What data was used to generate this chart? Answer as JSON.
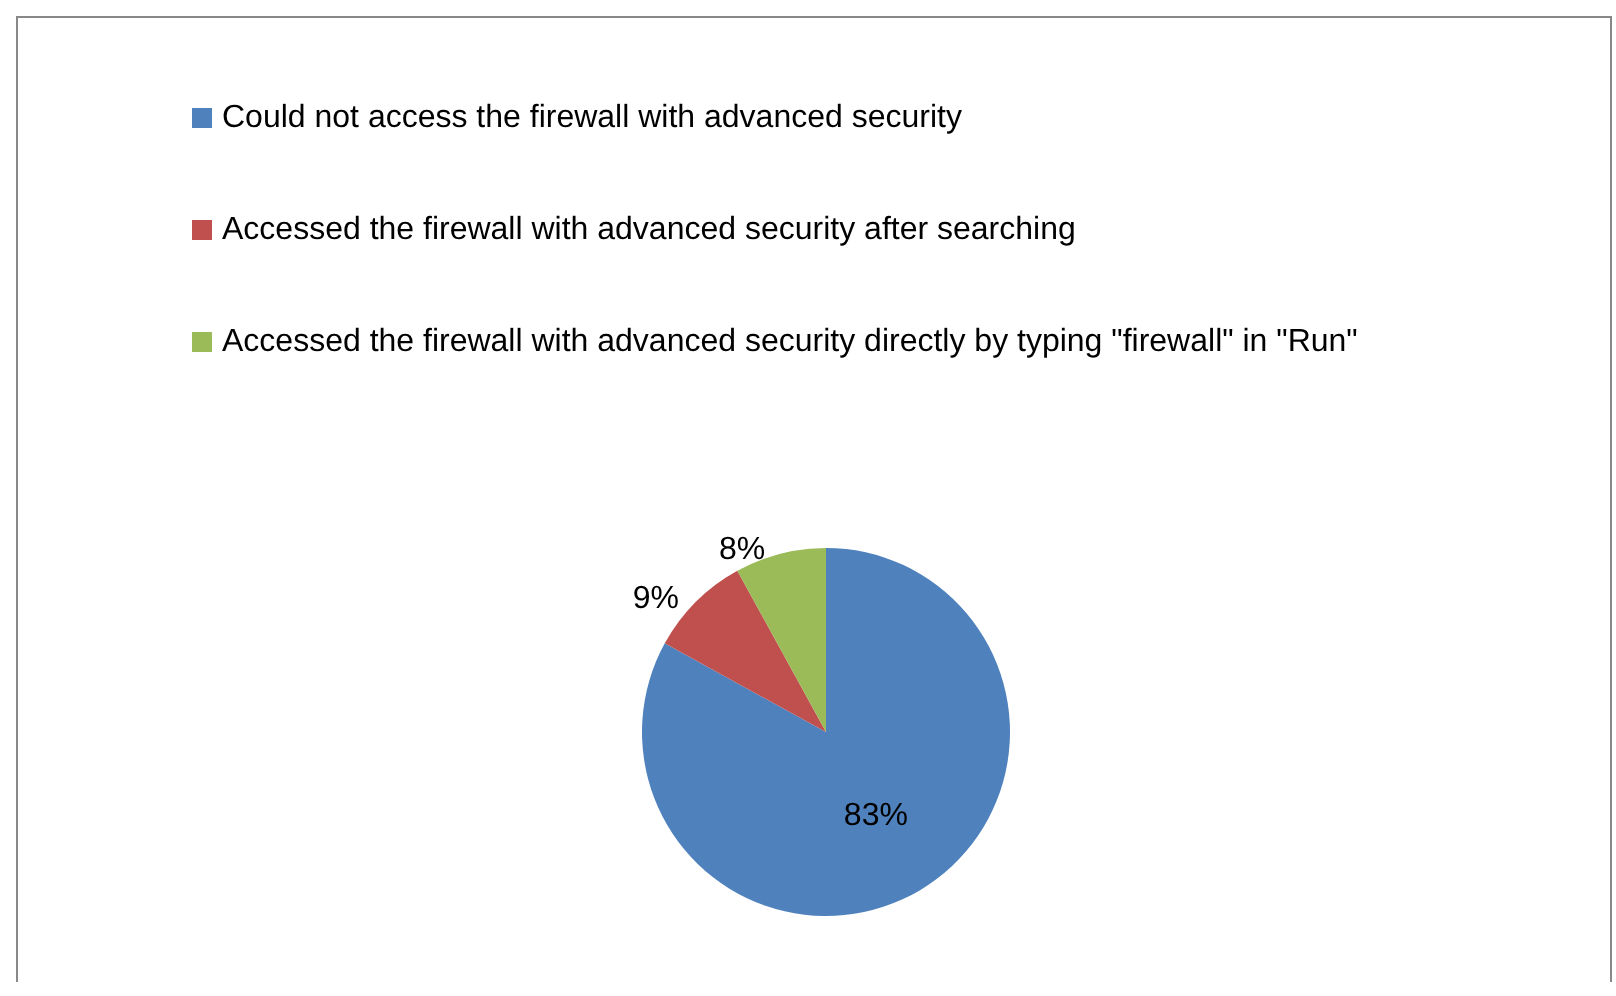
{
  "chart_data": {
    "type": "pie",
    "categories": [
      "Could not access the firewall with advanced security",
      "Accessed the firewall with advanced security after searching",
      "Accessed the firewall with advanced security directly by typing \"firewall\" in \"Run\""
    ],
    "values": [
      83,
      9,
      8
    ],
    "colors": [
      "#4f81bd",
      "#c0504d",
      "#9bbb59"
    ],
    "value_labels": [
      "83%",
      "9%",
      "8%"
    ],
    "legend": "top"
  }
}
